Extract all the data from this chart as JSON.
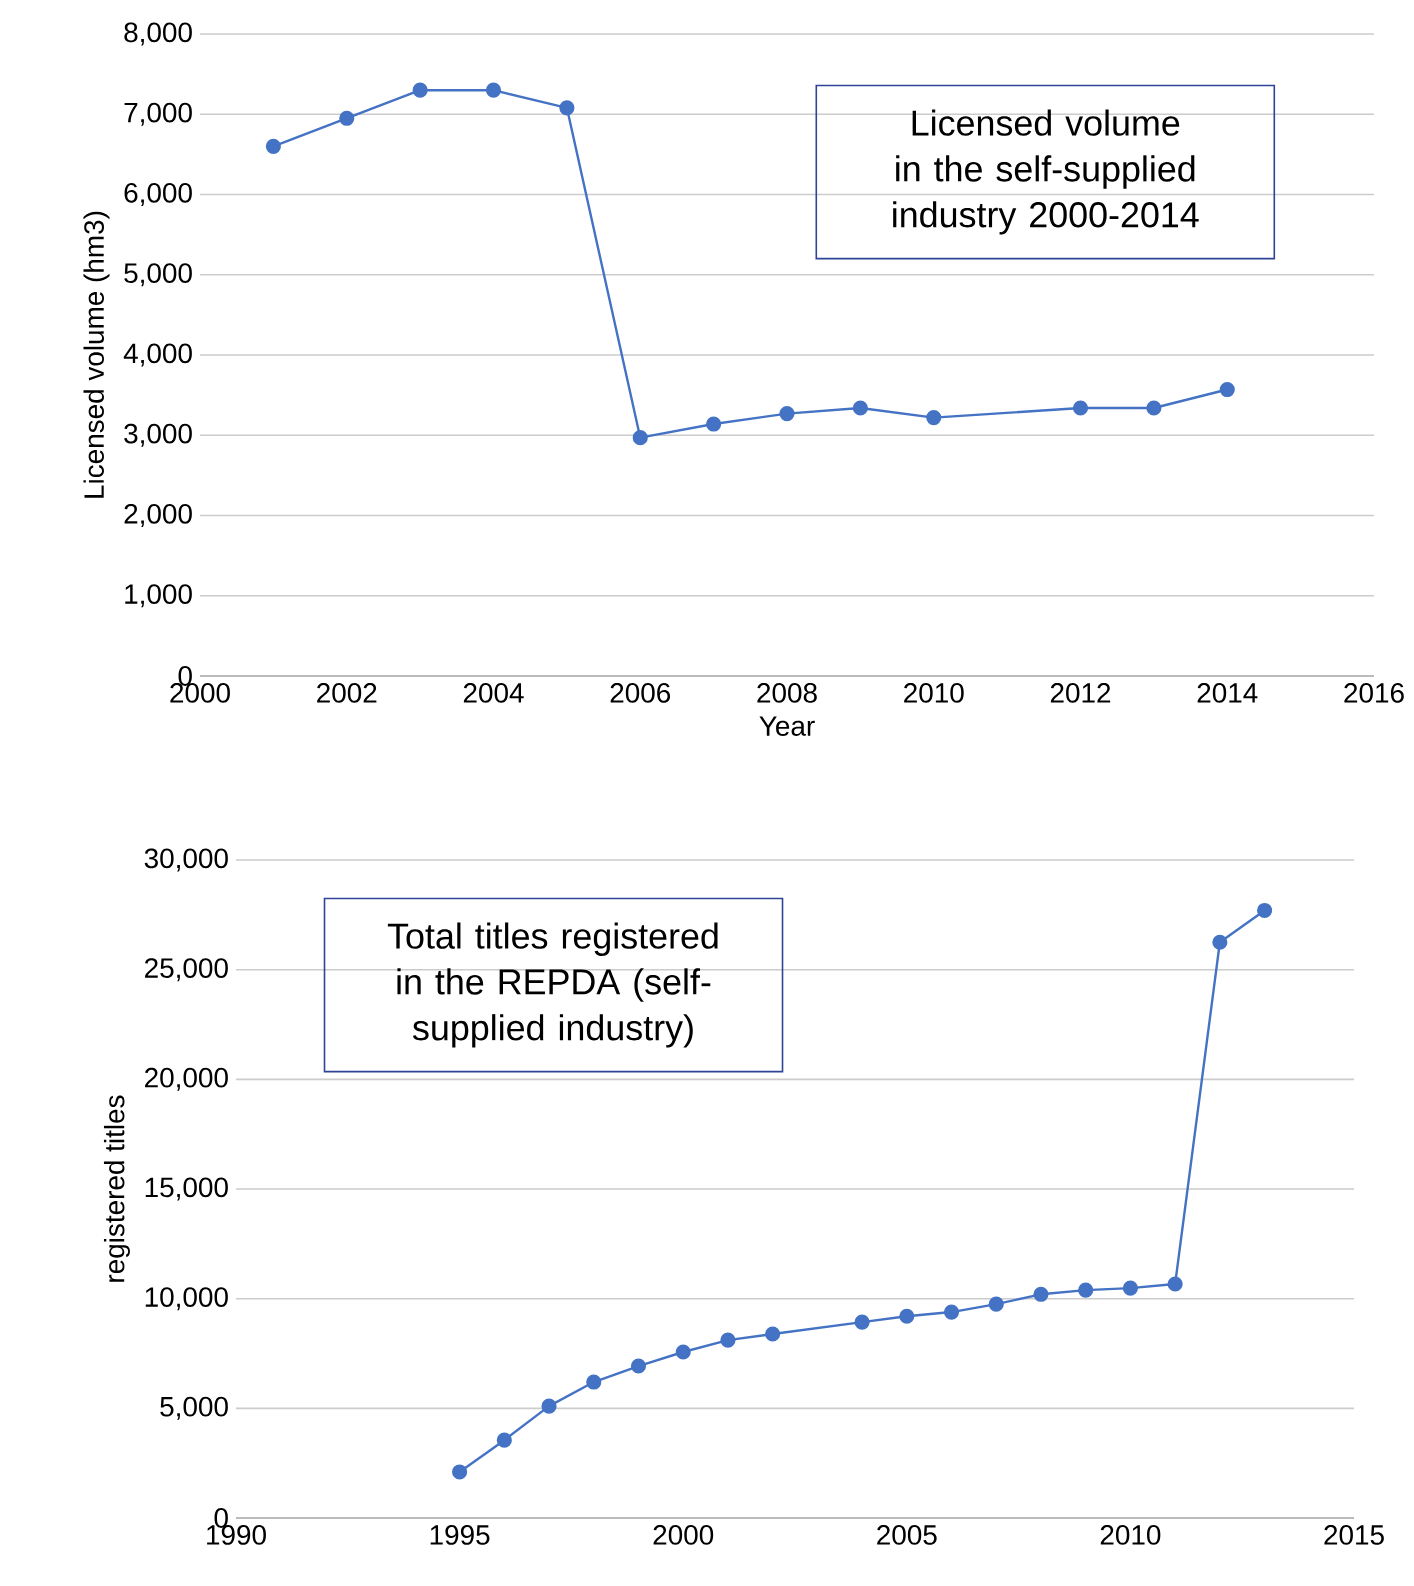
{
  "chart_data": [
    {
      "type": "line",
      "xlabel": "Year",
      "ylabel": "Licensed volume (hm3)",
      "annotations": [
        "Licensed volume in the self-supplied industry 2000-2014"
      ],
      "x": [
        2001,
        2002,
        2003,
        2004,
        2005,
        2006,
        2007,
        2008,
        2009,
        2010,
        2012,
        2013,
        2014
      ],
      "series": [
        {
          "color": "#4472c4",
          "values": [
            6600,
            6950,
            7300,
            7300,
            7080,
            2970,
            3140,
            3270,
            3340,
            3220,
            3340,
            3340,
            3570
          ]
        }
      ],
      "xlim": [
        2000,
        2016
      ],
      "xticks": [
        2000,
        2002,
        2004,
        2006,
        2008,
        2010,
        2012,
        2014,
        2016
      ],
      "ylim": [
        0,
        8000
      ],
      "yticks": [
        0,
        {
          "value": 1000,
          "label": "1,000"
        },
        {
          "value": 2000,
          "label": "2,000"
        },
        {
          "value": 3000,
          "label": "3,000"
        },
        {
          "value": 4000,
          "label": "4,000"
        },
        {
          "value": 5000,
          "label": "5,000"
        },
        {
          "value": 6000,
          "label": "6,000"
        },
        {
          "value": 7000,
          "label": "7,000"
        },
        {
          "value": 8000,
          "label": "8,000"
        }
      ],
      "grid": "y",
      "marker": "circle",
      "line_style": "solid"
    },
    {
      "type": "line",
      "ylabel": "registered titles",
      "annotations": [
        "Total titles registered in the REPDA (self-supplied industry)"
      ],
      "x": [
        1995,
        1996,
        1997,
        1998,
        1999,
        2000,
        2001,
        2002,
        2004,
        2005,
        2006,
        2007,
        2008,
        2009,
        2010,
        2011,
        2012,
        2013
      ],
      "series": [
        {
          "color": "#4472c4",
          "values": [
            2100,
            3550,
            5100,
            6200,
            6930,
            7570,
            8110,
            8390,
            8930,
            9200,
            9390,
            9750,
            10200,
            10390,
            10480,
            10670,
            26250,
            27700
          ]
        }
      ],
      "xlim": [
        1990,
        2015
      ],
      "xticks": [
        1990,
        1995,
        2000,
        2005,
        2010,
        2015
      ],
      "ylim": [
        0,
        30000
      ],
      "yticks": [
        0,
        {
          "value": 5000,
          "label": "5,000"
        },
        {
          "value": 10000,
          "label": "10,000"
        },
        {
          "value": 15000,
          "label": "15,000"
        },
        {
          "value": 20000,
          "label": "20,000"
        },
        {
          "value": 25000,
          "label": "25,000"
        },
        {
          "value": 30000,
          "label": "30,000"
        }
      ],
      "grid": "y",
      "marker": "circle",
      "line_style": "solid"
    }
  ]
}
